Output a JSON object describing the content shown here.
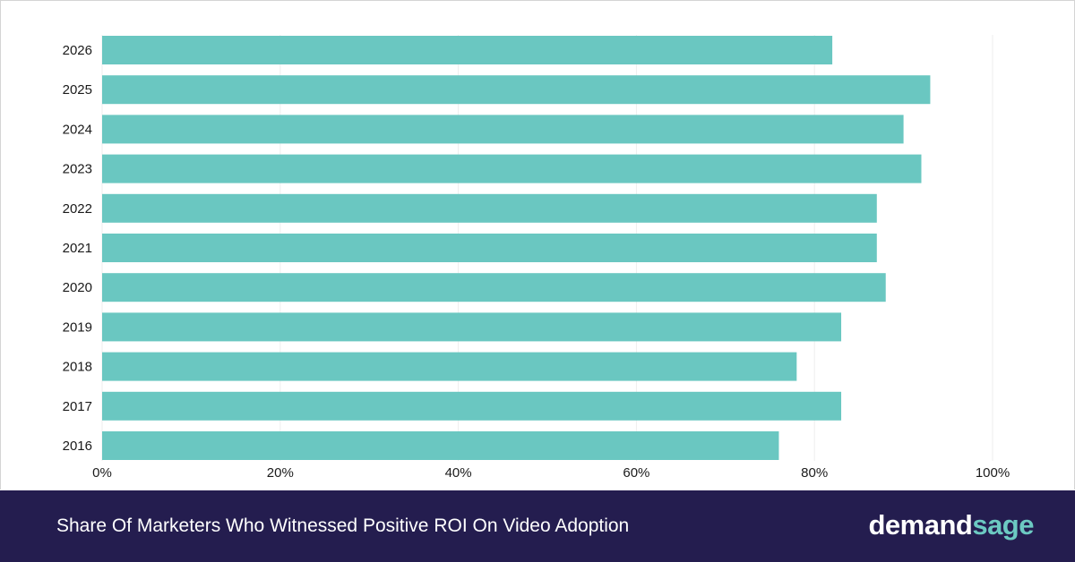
{
  "colors": {
    "bar": "#6ac7c1",
    "footer_bg": "#241d4f",
    "logo_accent": "#6cc9c2",
    "grid": "#eeeeee"
  },
  "footer": {
    "title": "Share Of  Marketers Who Witnessed Positive ROI On Video Adoption",
    "logo_part1": "demand",
    "logo_part2": "sage"
  },
  "chart_data": {
    "type": "bar",
    "orientation": "horizontal",
    "title": "Share Of  Marketers Who Witnessed Positive ROI On Video Adoption",
    "categories": [
      "2026",
      "2025",
      "2024",
      "2023",
      "2022",
      "2021",
      "2020",
      "2019",
      "2018",
      "2017",
      "2016"
    ],
    "values": [
      82,
      93,
      90,
      92,
      87,
      87,
      88,
      83,
      78,
      83,
      76
    ],
    "x_ticks": [
      "0%",
      "20%",
      "40%",
      "60%",
      "80%",
      "100%"
    ],
    "xlim": [
      0,
      100
    ],
    "grid": true,
    "xlabel": "",
    "ylabel": ""
  }
}
